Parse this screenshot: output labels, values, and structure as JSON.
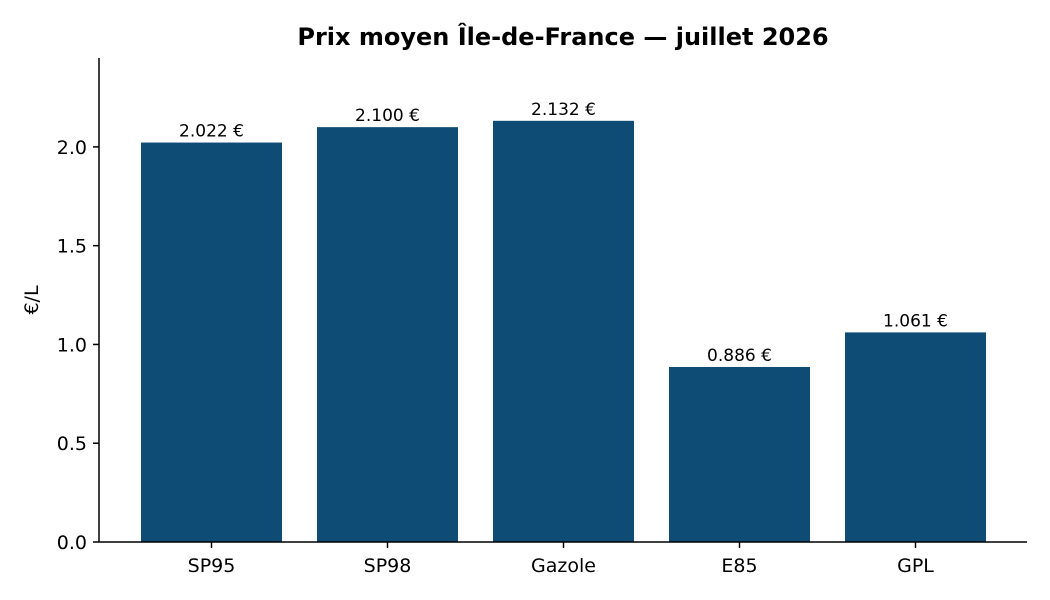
{
  "chart_data": {
    "type": "bar",
    "title": "Prix moyen Île-de-France — juillet 2026",
    "xlabel": "",
    "ylabel": "€/L",
    "categories": [
      "SP95",
      "SP98",
      "Gazole",
      "E85",
      "GPL"
    ],
    "values": [
      2.022,
      2.1,
      2.132,
      0.886,
      1.061
    ],
    "data_labels": [
      "2.022 €",
      "2.100 €",
      "2.132 €",
      "0.886 €",
      "1.061 €"
    ],
    "ylim": [
      0,
      2.45
    ],
    "yticks": [
      0.0,
      0.5,
      1.0,
      1.5,
      2.0
    ],
    "ytick_labels": [
      "0.0",
      "0.5",
      "1.0",
      "1.5",
      "2.0"
    ],
    "bar_color": "#0f4c75",
    "grid": false,
    "legend": "none"
  }
}
